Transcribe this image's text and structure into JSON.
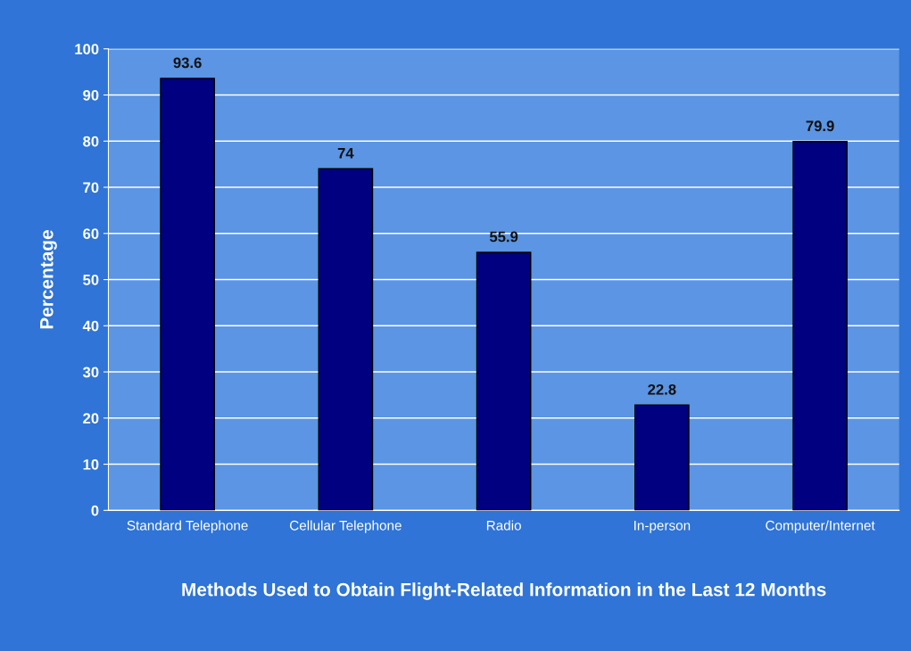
{
  "chart_data": {
    "type": "bar",
    "categories": [
      "Standard Telephone",
      "Cellular Telephone",
      "Radio",
      "In-person",
      "Computer/Internet"
    ],
    "values": [
      93.6,
      74,
      55.9,
      22.8,
      79.9
    ],
    "color": "#000080",
    "xlabel": "Methods Used to Obtain Flight-Related Information in the Last 12 Months",
    "ylabel": "Percentage",
    "ylim": [
      0,
      100
    ],
    "yticks": [
      0,
      10,
      20,
      30,
      40,
      50,
      60,
      70,
      80,
      90,
      100
    ],
    "grid": "y",
    "data_labels": true,
    "legend": false
  }
}
